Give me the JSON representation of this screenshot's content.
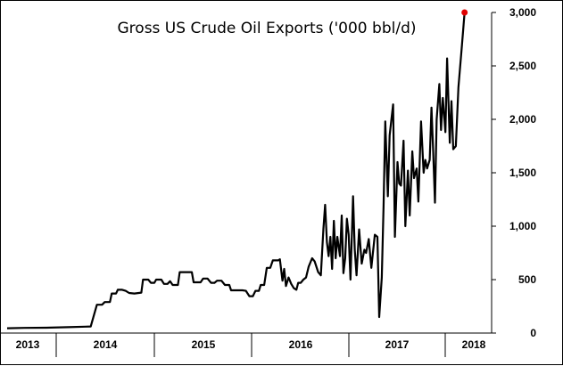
{
  "chart_data": {
    "type": "line",
    "title": "Gross US Crude Oil Exports ('000 bbl/d)",
    "xlabel": "",
    "ylabel": "",
    "ylim": [
      0,
      3000
    ],
    "y_ticks": [
      "0",
      "500",
      "1,000",
      "1,500",
      "2,000",
      "2,500",
      "3,000"
    ],
    "y_axis_side": "right",
    "grid": false,
    "x_categories": [
      "2013",
      "2014",
      "2015",
      "2016",
      "2017",
      "2018"
    ],
    "x_range": [
      2013.0,
      2018.54
    ],
    "series": [
      {
        "color": "#000000",
        "points": [
          [
            2013.0,
            45
          ],
          [
            2013.2,
            48
          ],
          [
            2013.45,
            50
          ],
          [
            2013.7,
            55
          ],
          [
            2013.9,
            60
          ],
          [
            2013.96,
            62
          ],
          [
            2014.03,
            265
          ],
          [
            2014.09,
            265
          ],
          [
            2014.12,
            290
          ],
          [
            2014.18,
            290
          ],
          [
            2014.2,
            370
          ],
          [
            2014.25,
            370
          ],
          [
            2014.27,
            405
          ],
          [
            2014.32,
            405
          ],
          [
            2014.36,
            395
          ],
          [
            2014.4,
            375
          ],
          [
            2014.46,
            370
          ],
          [
            2014.54,
            378
          ],
          [
            2014.56,
            500
          ],
          [
            2014.62,
            500
          ],
          [
            2014.65,
            470
          ],
          [
            2014.69,
            470
          ],
          [
            2014.71,
            500
          ],
          [
            2014.77,
            500
          ],
          [
            2014.8,
            460
          ],
          [
            2014.84,
            460
          ],
          [
            2014.87,
            485
          ],
          [
            2014.9,
            450
          ],
          [
            2014.96,
            450
          ],
          [
            2014.98,
            570
          ],
          [
            2015.12,
            570
          ],
          [
            2015.14,
            475
          ],
          [
            2015.22,
            475
          ],
          [
            2015.25,
            510
          ],
          [
            2015.3,
            510
          ],
          [
            2015.34,
            470
          ],
          [
            2015.38,
            470
          ],
          [
            2015.41,
            490
          ],
          [
            2015.46,
            490
          ],
          [
            2015.5,
            450
          ],
          [
            2015.55,
            450
          ],
          [
            2015.57,
            400
          ],
          [
            2015.7,
            400
          ],
          [
            2015.74,
            395
          ],
          [
            2015.78,
            345
          ],
          [
            2015.82,
            345
          ],
          [
            2015.85,
            395
          ],
          [
            2015.89,
            395
          ],
          [
            2015.91,
            450
          ],
          [
            2015.95,
            450
          ],
          [
            2015.98,
            610
          ],
          [
            2016.02,
            610
          ],
          [
            2016.05,
            680
          ],
          [
            2016.11,
            680
          ],
          [
            2016.13,
            690
          ],
          [
            2016.16,
            490
          ],
          [
            2016.18,
            600
          ],
          [
            2016.2,
            440
          ],
          [
            2016.23,
            520
          ],
          [
            2016.26,
            460
          ],
          [
            2016.29,
            420
          ],
          [
            2016.32,
            405
          ],
          [
            2016.34,
            470
          ],
          [
            2016.37,
            470
          ],
          [
            2016.4,
            500
          ],
          [
            2016.43,
            520
          ],
          [
            2016.46,
            620
          ],
          [
            2016.5,
            700
          ],
          [
            2016.53,
            670
          ],
          [
            2016.57,
            570
          ],
          [
            2016.6,
            540
          ],
          [
            2016.63,
            980
          ],
          [
            2016.65,
            1200
          ],
          [
            2016.67,
            850
          ],
          [
            2016.69,
            720
          ],
          [
            2016.71,
            900
          ],
          [
            2016.73,
            600
          ],
          [
            2016.75,
            1050
          ],
          [
            2016.77,
            700
          ],
          [
            2016.79,
            900
          ],
          [
            2016.82,
            720
          ],
          [
            2016.84,
            1100
          ],
          [
            2016.86,
            560
          ],
          [
            2016.88,
            700
          ],
          [
            2016.9,
            1070
          ],
          [
            2016.92,
            920
          ],
          [
            2016.94,
            500
          ],
          [
            2016.97,
            1280
          ],
          [
            2016.99,
            780
          ],
          [
            2017.01,
            540
          ],
          [
            2017.04,
            970
          ],
          [
            2017.07,
            650
          ],
          [
            2017.1,
            780
          ],
          [
            2017.12,
            750
          ],
          [
            2017.15,
            880
          ],
          [
            2017.18,
            610
          ],
          [
            2017.22,
            920
          ],
          [
            2017.25,
            900
          ],
          [
            2017.27,
            150
          ],
          [
            2017.3,
            520
          ],
          [
            2017.32,
            1190
          ],
          [
            2017.34,
            1980
          ],
          [
            2017.37,
            1280
          ],
          [
            2017.39,
            1850
          ],
          [
            2017.41,
            2000
          ],
          [
            2017.43,
            2140
          ],
          [
            2017.45,
            900
          ],
          [
            2017.48,
            1600
          ],
          [
            2017.5,
            1400
          ],
          [
            2017.52,
            1380
          ],
          [
            2017.55,
            1800
          ],
          [
            2017.57,
            1000
          ],
          [
            2017.6,
            1520
          ],
          [
            2017.62,
            1100
          ],
          [
            2017.65,
            1700
          ],
          [
            2017.67,
            1450
          ],
          [
            2017.7,
            1540
          ],
          [
            2017.72,
            1230
          ],
          [
            2017.75,
            1980
          ],
          [
            2017.78,
            1500
          ],
          [
            2017.8,
            1620
          ],
          [
            2017.82,
            1540
          ],
          [
            2017.85,
            1620
          ],
          [
            2017.87,
            2110
          ],
          [
            2017.89,
            1700
          ],
          [
            2017.91,
            1220
          ],
          [
            2017.93,
            2000
          ],
          [
            2017.96,
            2330
          ],
          [
            2017.98,
            1900
          ],
          [
            2018.0,
            2200
          ],
          [
            2018.03,
            1880
          ],
          [
            2018.05,
            2570
          ],
          [
            2018.08,
            1780
          ],
          [
            2018.1,
            2170
          ],
          [
            2018.12,
            1720
          ],
          [
            2018.15,
            1750
          ],
          [
            2018.18,
            2300
          ],
          [
            2018.22,
            2700
          ],
          [
            2018.25,
            3000
          ]
        ]
      }
    ],
    "annotations": [
      {
        "type": "marker",
        "x": 2018.25,
        "y": 3000,
        "color": "#e00000"
      }
    ]
  }
}
